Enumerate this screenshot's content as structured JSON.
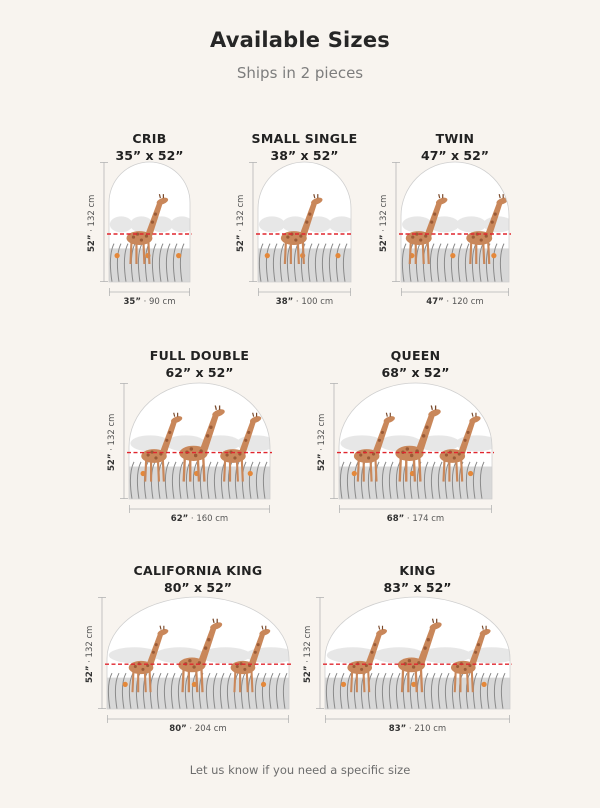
{
  "header": {
    "title": "Available Sizes",
    "subtitle": "Ships in 2 pieces"
  },
  "footer": {
    "note": "Let us know if you need a specific size"
  },
  "colors": {
    "background": "#f8f4ef",
    "split_line": "#e0262e",
    "giraffe": "#c9875a"
  },
  "sizes": [
    {
      "name": "CRIB",
      "dims": "35” x 52”",
      "width_in": "35”",
      "width_cm": "90 cm",
      "height_in": "52”",
      "height_cm": "132 cm",
      "giraffes": 1
    },
    {
      "name": "SMALL SINGLE",
      "dims": "38” x 52”",
      "width_in": "38”",
      "width_cm": "100 cm",
      "height_in": "52”",
      "height_cm": "132 cm",
      "giraffes": 1
    },
    {
      "name": "TWIN",
      "dims": "47” x 52”",
      "width_in": "47”",
      "width_cm": "120 cm",
      "height_in": "52”",
      "height_cm": "132 cm",
      "giraffes": 2
    },
    {
      "name": "FULL DOUBLE",
      "dims": "62” x 52”",
      "width_in": "62”",
      "width_cm": "160 cm",
      "height_in": "52”",
      "height_cm": "132 cm",
      "giraffes": 3
    },
    {
      "name": "QUEEN",
      "dims": "68” x 52”",
      "width_in": "68”",
      "width_cm": "174 cm",
      "height_in": "52”",
      "height_cm": "132 cm",
      "giraffes": 3
    },
    {
      "name": "CALIFORNIA KING",
      "dims": "80” x 52”",
      "width_in": "80”",
      "width_cm": "204 cm",
      "height_in": "52”",
      "height_cm": "132 cm",
      "giraffes": 3
    },
    {
      "name": "KING",
      "dims": "83” x 52”",
      "width_in": "83”",
      "width_cm": "210 cm",
      "height_in": "52”",
      "height_cm": "132 cm",
      "giraffes": 3
    }
  ]
}
